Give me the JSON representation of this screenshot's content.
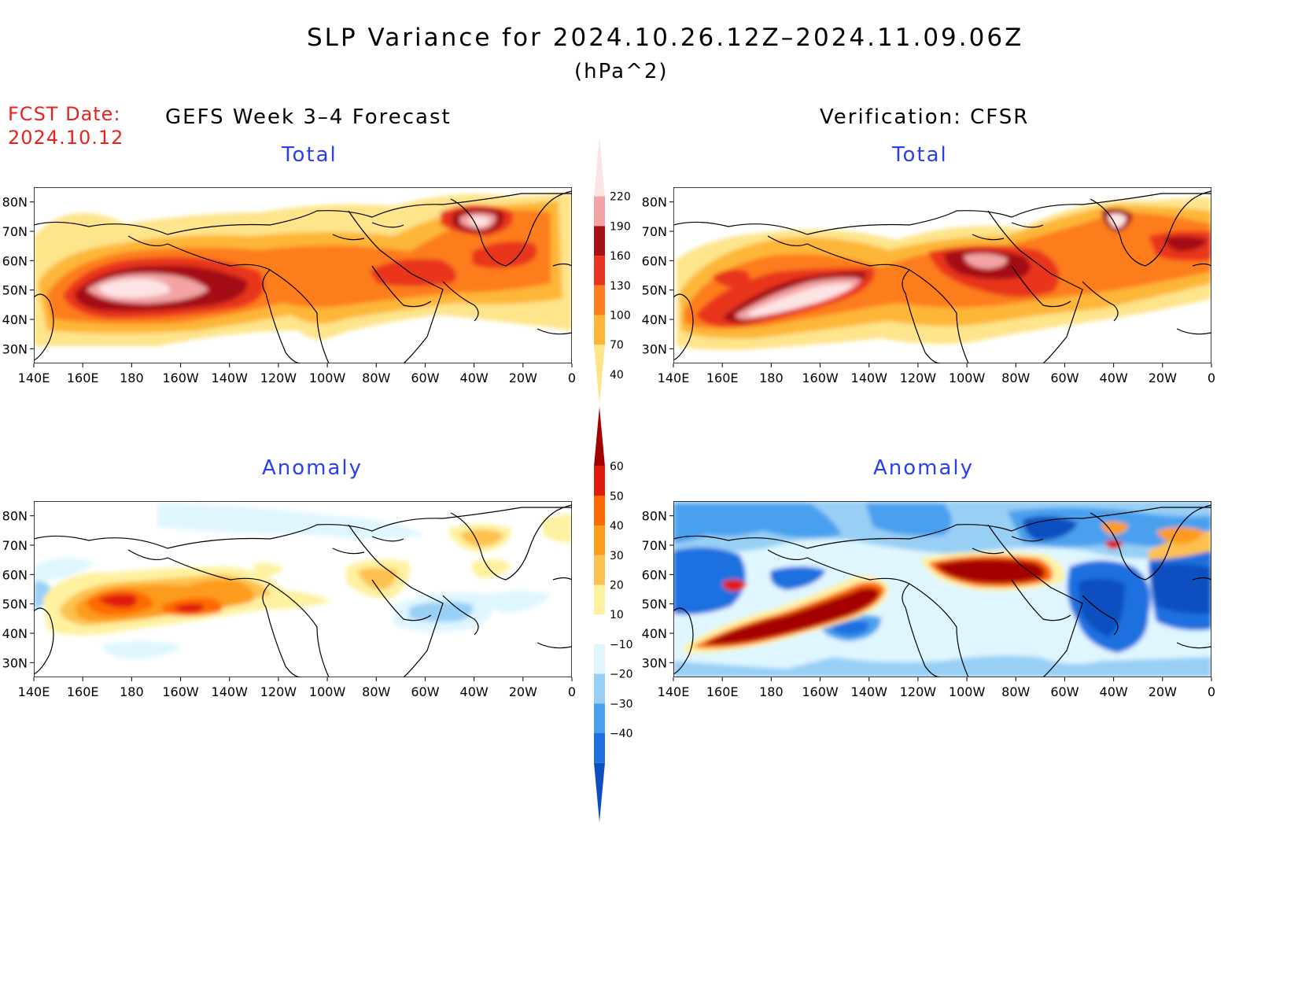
{
  "title": "SLP Variance for 2024.10.26.12Z–2024.11.09.06Z",
  "units": "(hPa^2)",
  "fcst_label": "FCST Date:",
  "fcst_date": "2024.10.12",
  "left_column": "GEFS Week 3–4 Forecast",
  "right_column": "Verification: CFSR",
  "panels": [
    {
      "heading": "Total",
      "field": "total"
    },
    {
      "heading": "Total",
      "field": "total"
    },
    {
      "heading": "Anomaly",
      "field": "anomaly"
    },
    {
      "heading": "Anomaly",
      "field": "anomaly"
    }
  ],
  "axes": {
    "lon_labels": [
      "140E",
      "160E",
      "180",
      "160W",
      "140W",
      "120W",
      "100W",
      "80W",
      "60W",
      "40W",
      "20W",
      "0"
    ],
    "lat_labels": [
      "80N",
      "70N",
      "60N",
      "50N",
      "40N",
      "30N"
    ],
    "lat_values": [
      80,
      70,
      60,
      50,
      40,
      30
    ],
    "lon_range": [
      140,
      360
    ],
    "lat_range": [
      25,
      85
    ]
  },
  "colorbars": {
    "total": {
      "levels": [
        "40",
        "70",
        "100",
        "130",
        "160",
        "190",
        "220"
      ],
      "colors": [
        "#fee48a",
        "#fdb638",
        "#fd7d1c",
        "#e8341c",
        "#a50f15",
        "#f3a3a3",
        "#fde4e4"
      ]
    },
    "anomaly": {
      "levels": [
        "60",
        "50",
        "40",
        "30",
        "20",
        "10",
        "−10",
        "−20",
        "−30",
        "−40"
      ],
      "colors": [
        "#a50000",
        "#e01b0a",
        "#ff6a00",
        "#fd9b1a",
        "#fdc14f",
        "#fef1a0",
        "#ffffff",
        "#dff6ff",
        "#98cff5",
        "#4aa0ee",
        "#1f6fe0",
        "#0e4fc0"
      ]
    }
  }
}
